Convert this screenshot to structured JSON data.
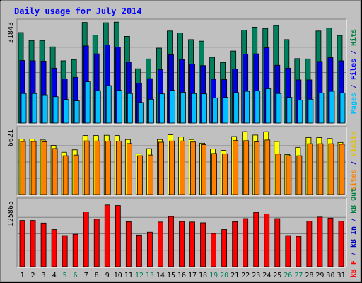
{
  "chart_data": {
    "type": "bar",
    "title": "Daily usage for July 2014",
    "categories": [
      "1",
      "2",
      "3",
      "4",
      "5",
      "6",
      "7",
      "8",
      "9",
      "10",
      "11",
      "12",
      "13",
      "14",
      "15",
      "16",
      "17",
      "18",
      "19",
      "20",
      "21",
      "22",
      "23",
      "24",
      "25",
      "26",
      "27",
      "28",
      "29",
      "30",
      "31"
    ],
    "weekend_days": [
      "5",
      "6",
      "12",
      "13",
      "19",
      "20",
      "26",
      "27"
    ],
    "panels": [
      {
        "name": "pages-files-hits",
        "ymax": 31843,
        "ymax_label": "31843",
        "right_label_parts": [
          {
            "text": "Pages",
            "color": "#00c0ff"
          },
          {
            "text": " / ",
            "color": "#0000c0"
          },
          {
            "text": "Files",
            "color": "#0000ff"
          },
          {
            "text": " / ",
            "color": "#0000c0"
          },
          {
            "text": "Hits",
            "color": "#008040"
          }
        ],
        "series": [
          {
            "name": "Hits",
            "color": "#00805c",
            "values": [
              28500,
              26000,
              26000,
              24000,
              19600,
              20000,
              31700,
              27700,
              31600,
              31800,
              27300,
              17100,
              20200,
              23600,
              29000,
              28400,
              26300,
              25800,
              20700,
              19100,
              22700,
              29300,
              30200,
              29800,
              30700,
              26300,
              20300,
              20200,
              29000,
              29900,
              27600
            ]
          },
          {
            "name": "Files",
            "color": "#0000e0",
            "values": [
              19700,
              19600,
              19500,
              17300,
              13900,
              14400,
              24300,
              21800,
              24600,
              23900,
              19200,
              12600,
              14000,
              16800,
              21500,
              20000,
              18600,
              18100,
              13800,
              13700,
              17000,
              21700,
              21800,
              23700,
              18200,
              17300,
              13600,
              13600,
              19400,
              20600,
              19600
            ]
          },
          {
            "name": "Pages",
            "color": "#00c0ff",
            "values": [
              9300,
              9300,
              8900,
              8300,
              7400,
              7000,
              13000,
              10200,
              11800,
              10300,
              9300,
              6500,
              7500,
              9200,
              10300,
              9700,
              9300,
              9200,
              7900,
              8100,
              9600,
              10000,
              10100,
              10800,
              9300,
              8100,
              7200,
              7500,
              9500,
              10000,
              9500
            ]
          }
        ]
      },
      {
        "name": "visits-sites",
        "ymax": 6621,
        "ymax_label": "6621",
        "right_label_parts": [
          {
            "text": "Sites",
            "color": "#ff8000"
          },
          {
            "text": " / ",
            "color": "#0000c0"
          },
          {
            "text": "Visits",
            "color": "#e0c000"
          }
        ],
        "series": [
          {
            "name": "Visits",
            "color": "#ffff00",
            "values": [
              5650,
              5650,
              5550,
              5000,
              4300,
              4550,
              6000,
              6000,
              6030,
              6000,
              5600,
              4150,
              4670,
              5600,
              6080,
              5850,
              5600,
              5230,
              4640,
              4500,
              5900,
              6400,
              6050,
              6390,
              5400,
              4070,
              4800,
              5800,
              5800,
              5700,
              5300
            ]
          },
          {
            "name": "Sites",
            "color": "#ff8000",
            "values": [
              5400,
              5400,
              5370,
              4680,
              3950,
              4020,
              5460,
              5450,
              5440,
              5440,
              5190,
              3950,
              4020,
              5330,
              5450,
              5450,
              5350,
              5080,
              4180,
              4150,
              5490,
              5480,
              5370,
              5550,
              4120,
              3960,
              3950,
              5170,
              5170,
              5170,
              5120
            ]
          }
        ]
      },
      {
        "name": "kbf-kbin-kbout",
        "ymax": 125865,
        "ymax_label": "125865",
        "right_label_parts": [
          {
            "text": "kB F",
            "color": "#ff0000"
          },
          {
            "text": " / ",
            "color": "#0000c0"
          },
          {
            "text": "kB In",
            "color": "#0000c0"
          },
          {
            "text": " / ",
            "color": "#0000c0"
          },
          {
            "text": "kB Out",
            "color": "#008040"
          }
        ],
        "series": [
          {
            "name": "kB F",
            "color": "#ff0000",
            "values": [
              88500,
              88500,
              83500,
              71000,
              59500,
              62000,
              105000,
              91000,
              118000,
              117000,
              86000,
              60500,
              66000,
              85500,
              96000,
              86500,
              85500,
              84000,
              63500,
              71000,
              86000,
              92000,
              104000,
              101000,
              92000,
              59500,
              58000,
              87000,
              95000,
              93000,
              87000
            ]
          }
        ]
      }
    ]
  },
  "colors": {
    "page_bg": "#ffffff",
    "frame_bg": "#c0c0c0",
    "plot_bg": "#c0c0c0",
    "title_color": "#0000ff",
    "label_color": "#000000",
    "weekend_label_color": "#00805c"
  }
}
